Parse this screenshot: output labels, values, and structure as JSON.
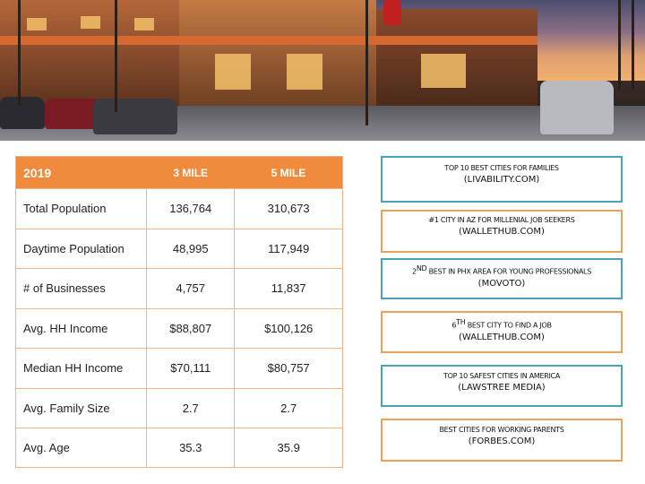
{
  "table": {
    "headers": [
      "2019",
      "3 MILE",
      "5 MILE"
    ],
    "rows": [
      [
        "Total Population",
        "136,764",
        "310,673"
      ],
      [
        "Daytime Population",
        "48,995",
        "117,949"
      ],
      [
        "# of Businesses",
        "4,757",
        "11,837"
      ],
      [
        "Avg. HH Income",
        "$88,807",
        "$100,126"
      ],
      [
        "Median HH Income",
        "$70,111",
        "$80,757"
      ],
      [
        "Avg. Family Size",
        "2.7",
        "2.7"
      ],
      [
        "Avg. Age",
        "35.3",
        "35.9"
      ]
    ]
  },
  "awards": [
    {
      "title": "TOP 10 BEST CITIES FOR FAMILIES",
      "source": "(LIVABILITY.COM)",
      "color": "#4aa3b8"
    },
    {
      "title": "#1 CITY IN AZ FOR MILLENIAL JOB SEEKERS",
      "source": "(WALLETHUB.COM)",
      "color": "#e8a25a"
    },
    {
      "num": "2",
      "sup": "ND",
      "title": " BEST IN PHX AREA FOR YOUNG PROFESSIONALS",
      "source": "(MOVOTO)",
      "color": "#4aa3b8"
    },
    {
      "num": "6",
      "sup": "TH",
      "title": " BEST CITY TO FIND A JOB",
      "source": "(WALLETHUB.COM)",
      "color": "#e8a25a"
    },
    {
      "title": "TOP 10 SAFEST CITIES IN AMERICA",
      "source": "(LAWSTREE MEDIA)",
      "color": "#4aa3b8"
    },
    {
      "title": "BEST CITIES FOR WORKING PARENTS",
      "source": "(FORBES.COM)",
      "color": "#e8a25a"
    }
  ]
}
